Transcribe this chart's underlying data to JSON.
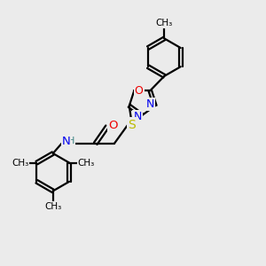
{
  "bg_color": "#ebebeb",
  "bond_color": "#000000",
  "N_color": "#0000ee",
  "O_color": "#ee0000",
  "S_color": "#bbbb00",
  "H_color": "#448888",
  "line_width": 1.6,
  "font_size": 8.5,
  "fig_size": [
    3.0,
    3.0
  ],
  "dpi": 100,
  "xlim": [
    0,
    10
  ],
  "ylim": [
    0,
    10
  ]
}
